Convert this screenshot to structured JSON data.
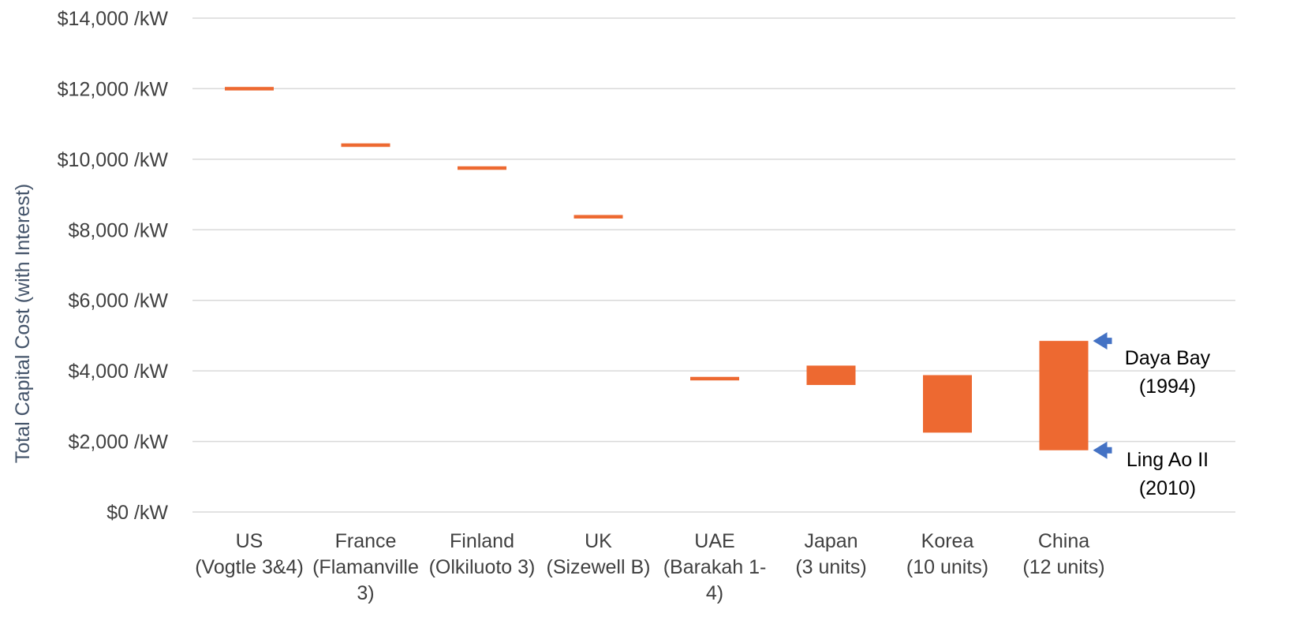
{
  "chart_data": {
    "type": "bar",
    "subtype": "floating-range",
    "ylabel": "Total Capital Cost  (with Interest)",
    "ylim": [
      0,
      14000
    ],
    "y_ticks": [
      0,
      2000,
      4000,
      6000,
      8000,
      10000,
      12000,
      14000
    ],
    "y_tick_labels": [
      "$0 /kW",
      "$2,000 /kW",
      "$4,000 /kW",
      "$6,000 /kW",
      "$8,000 /kW",
      "$10,000 /kW",
      "$12,000 /kW",
      "$14,000 /kW"
    ],
    "grid": true,
    "bar_color": "#ed6931",
    "grid_color": "#d9d9d9",
    "categories": [
      {
        "lines": [
          "US",
          "(Vogtle 3&4)"
        ],
        "low": 11950,
        "high": 12050
      },
      {
        "lines": [
          "France",
          "(Flamanville",
          "3)"
        ],
        "low": 10350,
        "high": 10450
      },
      {
        "lines": [
          "Finland",
          "(Olkiluoto 3)"
        ],
        "low": 9700,
        "high": 9800
      },
      {
        "lines": [
          "UK",
          "(Sizewell B)"
        ],
        "low": 8320,
        "high": 8420
      },
      {
        "lines": [
          "UAE",
          "(Barakah 1-",
          "4)"
        ],
        "low": 3730,
        "high": 3830
      },
      {
        "lines": [
          "Japan",
          "(3 units)"
        ],
        "low": 3600,
        "high": 4150
      },
      {
        "lines": [
          "Korea",
          "(10 units)"
        ],
        "low": 2250,
        "high": 3880
      },
      {
        "lines": [
          "China",
          "(12 units)"
        ],
        "low": 1750,
        "high": 4850
      }
    ],
    "annotations": [
      {
        "lines": [
          "Daya Bay",
          "(1994)"
        ],
        "value": 4850,
        "arrow_color": "#4472c4"
      },
      {
        "lines": [
          "Ling Ao II",
          "(2010)"
        ],
        "value": 1750,
        "arrow_color": "#4472c4"
      }
    ]
  }
}
